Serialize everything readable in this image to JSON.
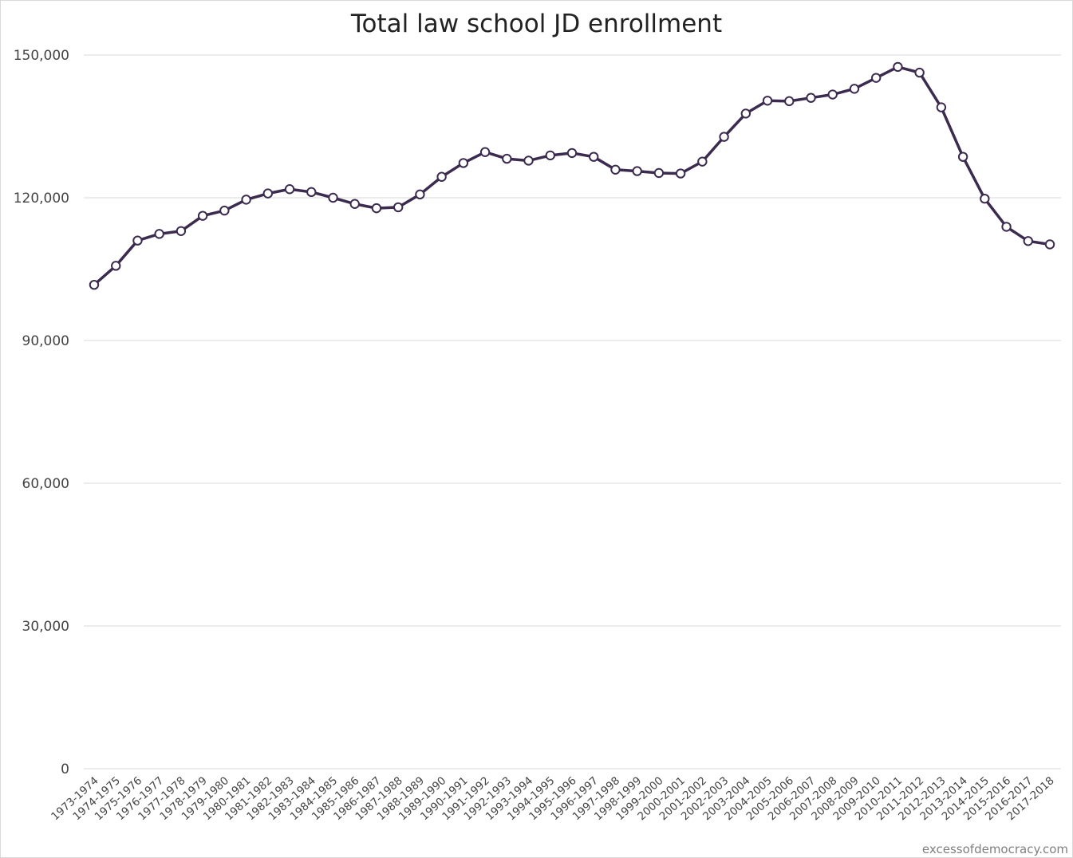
{
  "watermark": "excessofdemocracy.com",
  "chart_data": {
    "type": "line",
    "title": "Total law school JD enrollment",
    "xlabel": "",
    "ylabel": "",
    "ylim": [
      0,
      150000
    ],
    "yticks": [
      0,
      30000,
      60000,
      90000,
      120000,
      150000
    ],
    "ytick_labels": [
      "0",
      "30,000",
      "60,000",
      "90,000",
      "120,000",
      "150,000"
    ],
    "grid": true,
    "legend": "none",
    "colors": {
      "line": "#3b2b4f",
      "marker_fill": "#ffffff",
      "grid": "#d9d9d9"
    },
    "categories": [
      "1973-1974",
      "1974-1975",
      "1975-1976",
      "1976-1977",
      "1977-1978",
      "1978-1979",
      "1979-1980",
      "1980-1981",
      "1981-1982",
      "1982-1983",
      "1983-1984",
      "1984-1985",
      "1985-1986",
      "1986-1987",
      "1987-1988",
      "1988-1989",
      "1989-1990",
      "1990-1991",
      "1991-1992",
      "1992-1993",
      "1993-1994",
      "1994-1995",
      "1995-1996",
      "1996-1997",
      "1997-1998",
      "1998-1999",
      "1999-2000",
      "2000-2001",
      "2001-2002",
      "2002-2003",
      "2003-2004",
      "2004-2005",
      "2005-2006",
      "2006-2007",
      "2007-2008",
      "2008-2009",
      "2009-2010",
      "2010-2011",
      "2011-2012",
      "2012-2013",
      "2013-2014",
      "2014-2015",
      "2015-2016",
      "2016-2017",
      "2017-2018"
    ],
    "series": [
      {
        "values": [
          101700,
          105700,
          111000,
          112400,
          113000,
          116200,
          117300,
          119600,
          120900,
          121800,
          121200,
          120000,
          118700,
          117800,
          118000,
          120700,
          124400,
          127300,
          129600,
          128200,
          127800,
          128900,
          129400,
          128600,
          125900,
          125600,
          125200,
          125100,
          127600,
          132800,
          137700,
          140400,
          140300,
          141000,
          141700,
          142900,
          145200,
          147500,
          146300,
          139000,
          128600,
          119800,
          113900,
          110900,
          110200
        ]
      }
    ]
  }
}
